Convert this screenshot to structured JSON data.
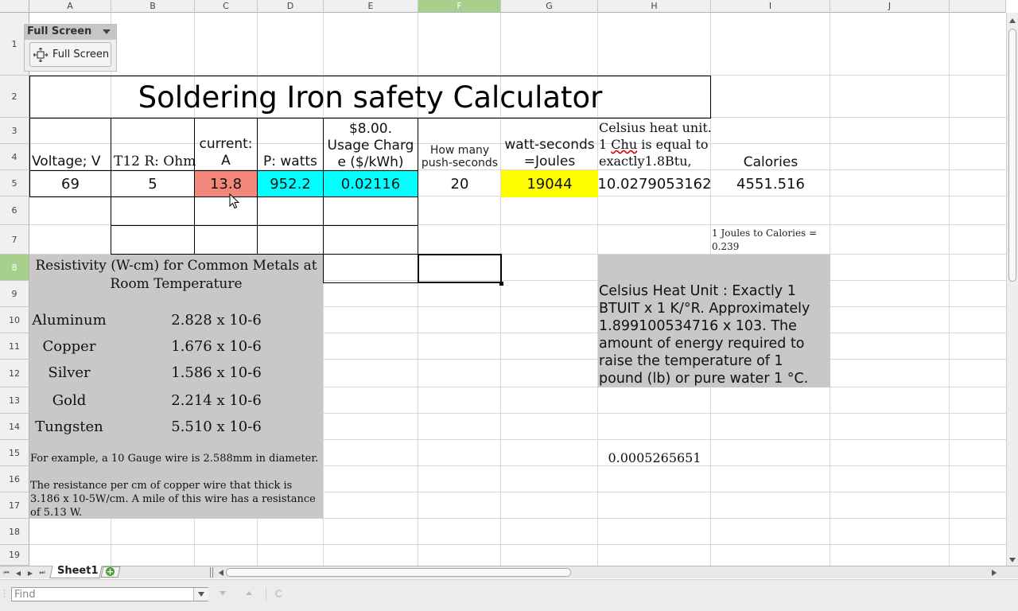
{
  "columns": [
    "A",
    "B",
    "C",
    "D",
    "E",
    "F",
    "G",
    "H",
    "I",
    "J"
  ],
  "selected_column": "F",
  "rows": [
    "1",
    "2",
    "3",
    "4",
    "5",
    "6",
    "7",
    "8",
    "9",
    "10",
    "11",
    "12",
    "13",
    "14",
    "15",
    "16",
    "17",
    "18",
    "19"
  ],
  "selected_row": "8",
  "fullscreen_toolbar": {
    "title": "Full Screen",
    "button_label": "Full Screen"
  },
  "title": "Soldering Iron safety Calculator",
  "headers": {
    "voltage": "Voltage; V",
    "resistance": "T12 R: Ohm",
    "current": "current: A",
    "power": "P: watts",
    "usage_price": "$8.00.",
    "usage": "Usage Charge ($/kWh)",
    "push": "How many push-seconds",
    "joules": "watt-seconds =Joules",
    "celsius_line1": "Celsius heat unit.",
    "celsius_line2a": "1 ",
    "celsius_chu": "Chu",
    "celsius_line2b": " is equal to",
    "celsius_line3": "exactly1.8Btu,",
    "calories": "Calories"
  },
  "values": {
    "voltage": "69",
    "resistance": "5",
    "current": "13.8",
    "power": "952.2",
    "usage": "0.02116",
    "push": "20",
    "joules": "19044",
    "chu": "10.0279053162",
    "calories": "4551.516"
  },
  "joules_note": "1 Joules to Calories = 0.239",
  "resistivity": {
    "title": "Resistivity (W-cm) for Common Metals at Room Temperature",
    "metals": [
      {
        "name": "Aluminum",
        "value": "2.828 x 10-6"
      },
      {
        "name": "Copper",
        "value": "1.676 x 10-6"
      },
      {
        "name": "Silver",
        "value": "1.586 x 10-6"
      },
      {
        "name": "Gold",
        "value": "2.214 x 10-6"
      },
      {
        "name": "Tungsten",
        "value": "5.510 x 10-6"
      }
    ],
    "example1": "For example, a 10 Gauge wire is 2.588mm in diameter.",
    "example2": "The resistance per cm of copper wire that thick is 3.186 x 10-5W/cm. A mile of this wire has a resistance of 5.13 W."
  },
  "celsius_def": "Celsius Heat Unit : Exactly 1 BTUIT x 1 K/°R. Approximately 1.899100534716 x 103. The amount of energy required to raise the temperature of 1 pound (lb) or pure water 1 °C.",
  "h15_value": "0.0005265651",
  "sheet_tab": "Sheet1",
  "find_placeholder": "Find",
  "colors": {
    "current_fill": "#f4877b",
    "power_fill": "#00ffff",
    "joules_fill": "#ffff00",
    "gray_fill": "#c8c8c8",
    "selection_header": "#a6d08c"
  }
}
